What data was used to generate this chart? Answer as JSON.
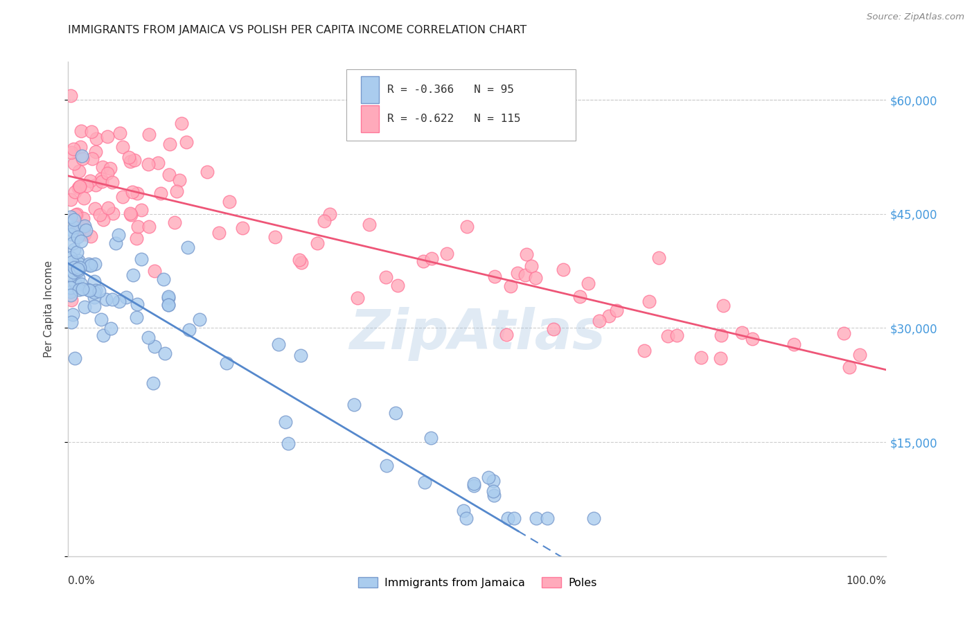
{
  "title": "IMMIGRANTS FROM JAMAICA VS POLISH PER CAPITA INCOME CORRELATION CHART",
  "source": "Source: ZipAtlas.com",
  "ylabel": "Per Capita Income",
  "yticks": [
    0,
    15000,
    30000,
    45000,
    60000
  ],
  "ytick_labels": [
    "",
    "$15,000",
    "$30,000",
    "$45,000",
    "$60,000"
  ],
  "ymin": 0,
  "ymax": 65000,
  "xmin": 0,
  "xmax": 100,
  "legend_blue_r": "-0.366",
  "legend_blue_n": "95",
  "legend_pink_r": "-0.622",
  "legend_pink_n": "115",
  "blue_line_color": "#5588cc",
  "pink_line_color": "#ee5577",
  "blue_face_color": "#aaccee",
  "pink_face_color": "#ffaabb",
  "blue_edge_color": "#7799cc",
  "pink_edge_color": "#ff7799",
  "watermark": "ZipAtlas",
  "blue_intercept": 38500,
  "blue_slope": -640,
  "blue_x_max_solid": 55,
  "pink_intercept": 50000,
  "pink_slope": -255
}
